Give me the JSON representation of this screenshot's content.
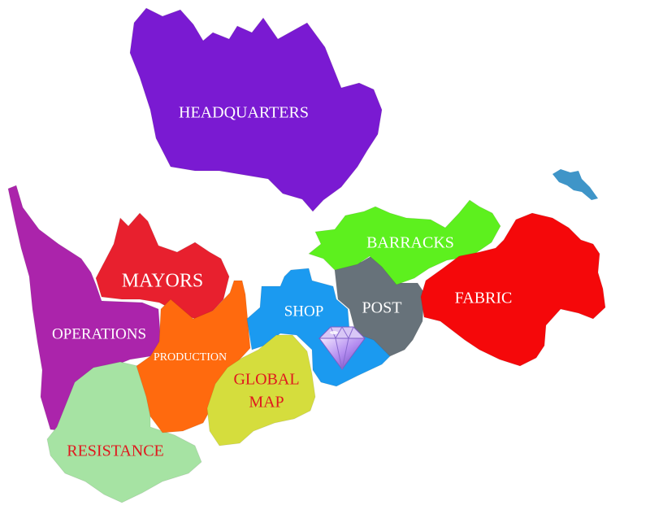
{
  "regions": {
    "headquarters": {
      "label": "HEADQUARTERS",
      "color": "#7a1ad2",
      "text_color": "#ffffff"
    },
    "operations": {
      "label": "OPERATIONS",
      "color": "#ab24ab",
      "text_color": "#ffffff"
    },
    "mayors": {
      "label": "MAYORS",
      "color": "#e8202e",
      "text_color": "#ffffff"
    },
    "production": {
      "label": "PRODUCTION",
      "color": "#ff6a0e",
      "text_color": "#ffffff"
    },
    "resistance": {
      "label": "RESISTANCE",
      "color": "#a6e3a3",
      "text_color": "#e0181e"
    },
    "shop": {
      "label": "SHOP",
      "color": "#1b9af0",
      "text_color": "#ffffff"
    },
    "global_map": {
      "label_line1": "GLOBAL",
      "label_line2": "MAP",
      "color": "#d5dd3d",
      "text_color": "#e0181e"
    },
    "post": {
      "label": "POST",
      "color": "#67727a",
      "text_color": "#ffffff"
    },
    "barracks": {
      "label": "BARRACKS",
      "color": "#5df01e",
      "text_color": "#ffffff"
    },
    "fabric": {
      "label": "FABRIC",
      "color": "#f5080a",
      "text_color": "#ffffff"
    },
    "islet": {
      "color": "#3f95c8"
    }
  },
  "icons": {
    "gem": "diamond-icon"
  }
}
